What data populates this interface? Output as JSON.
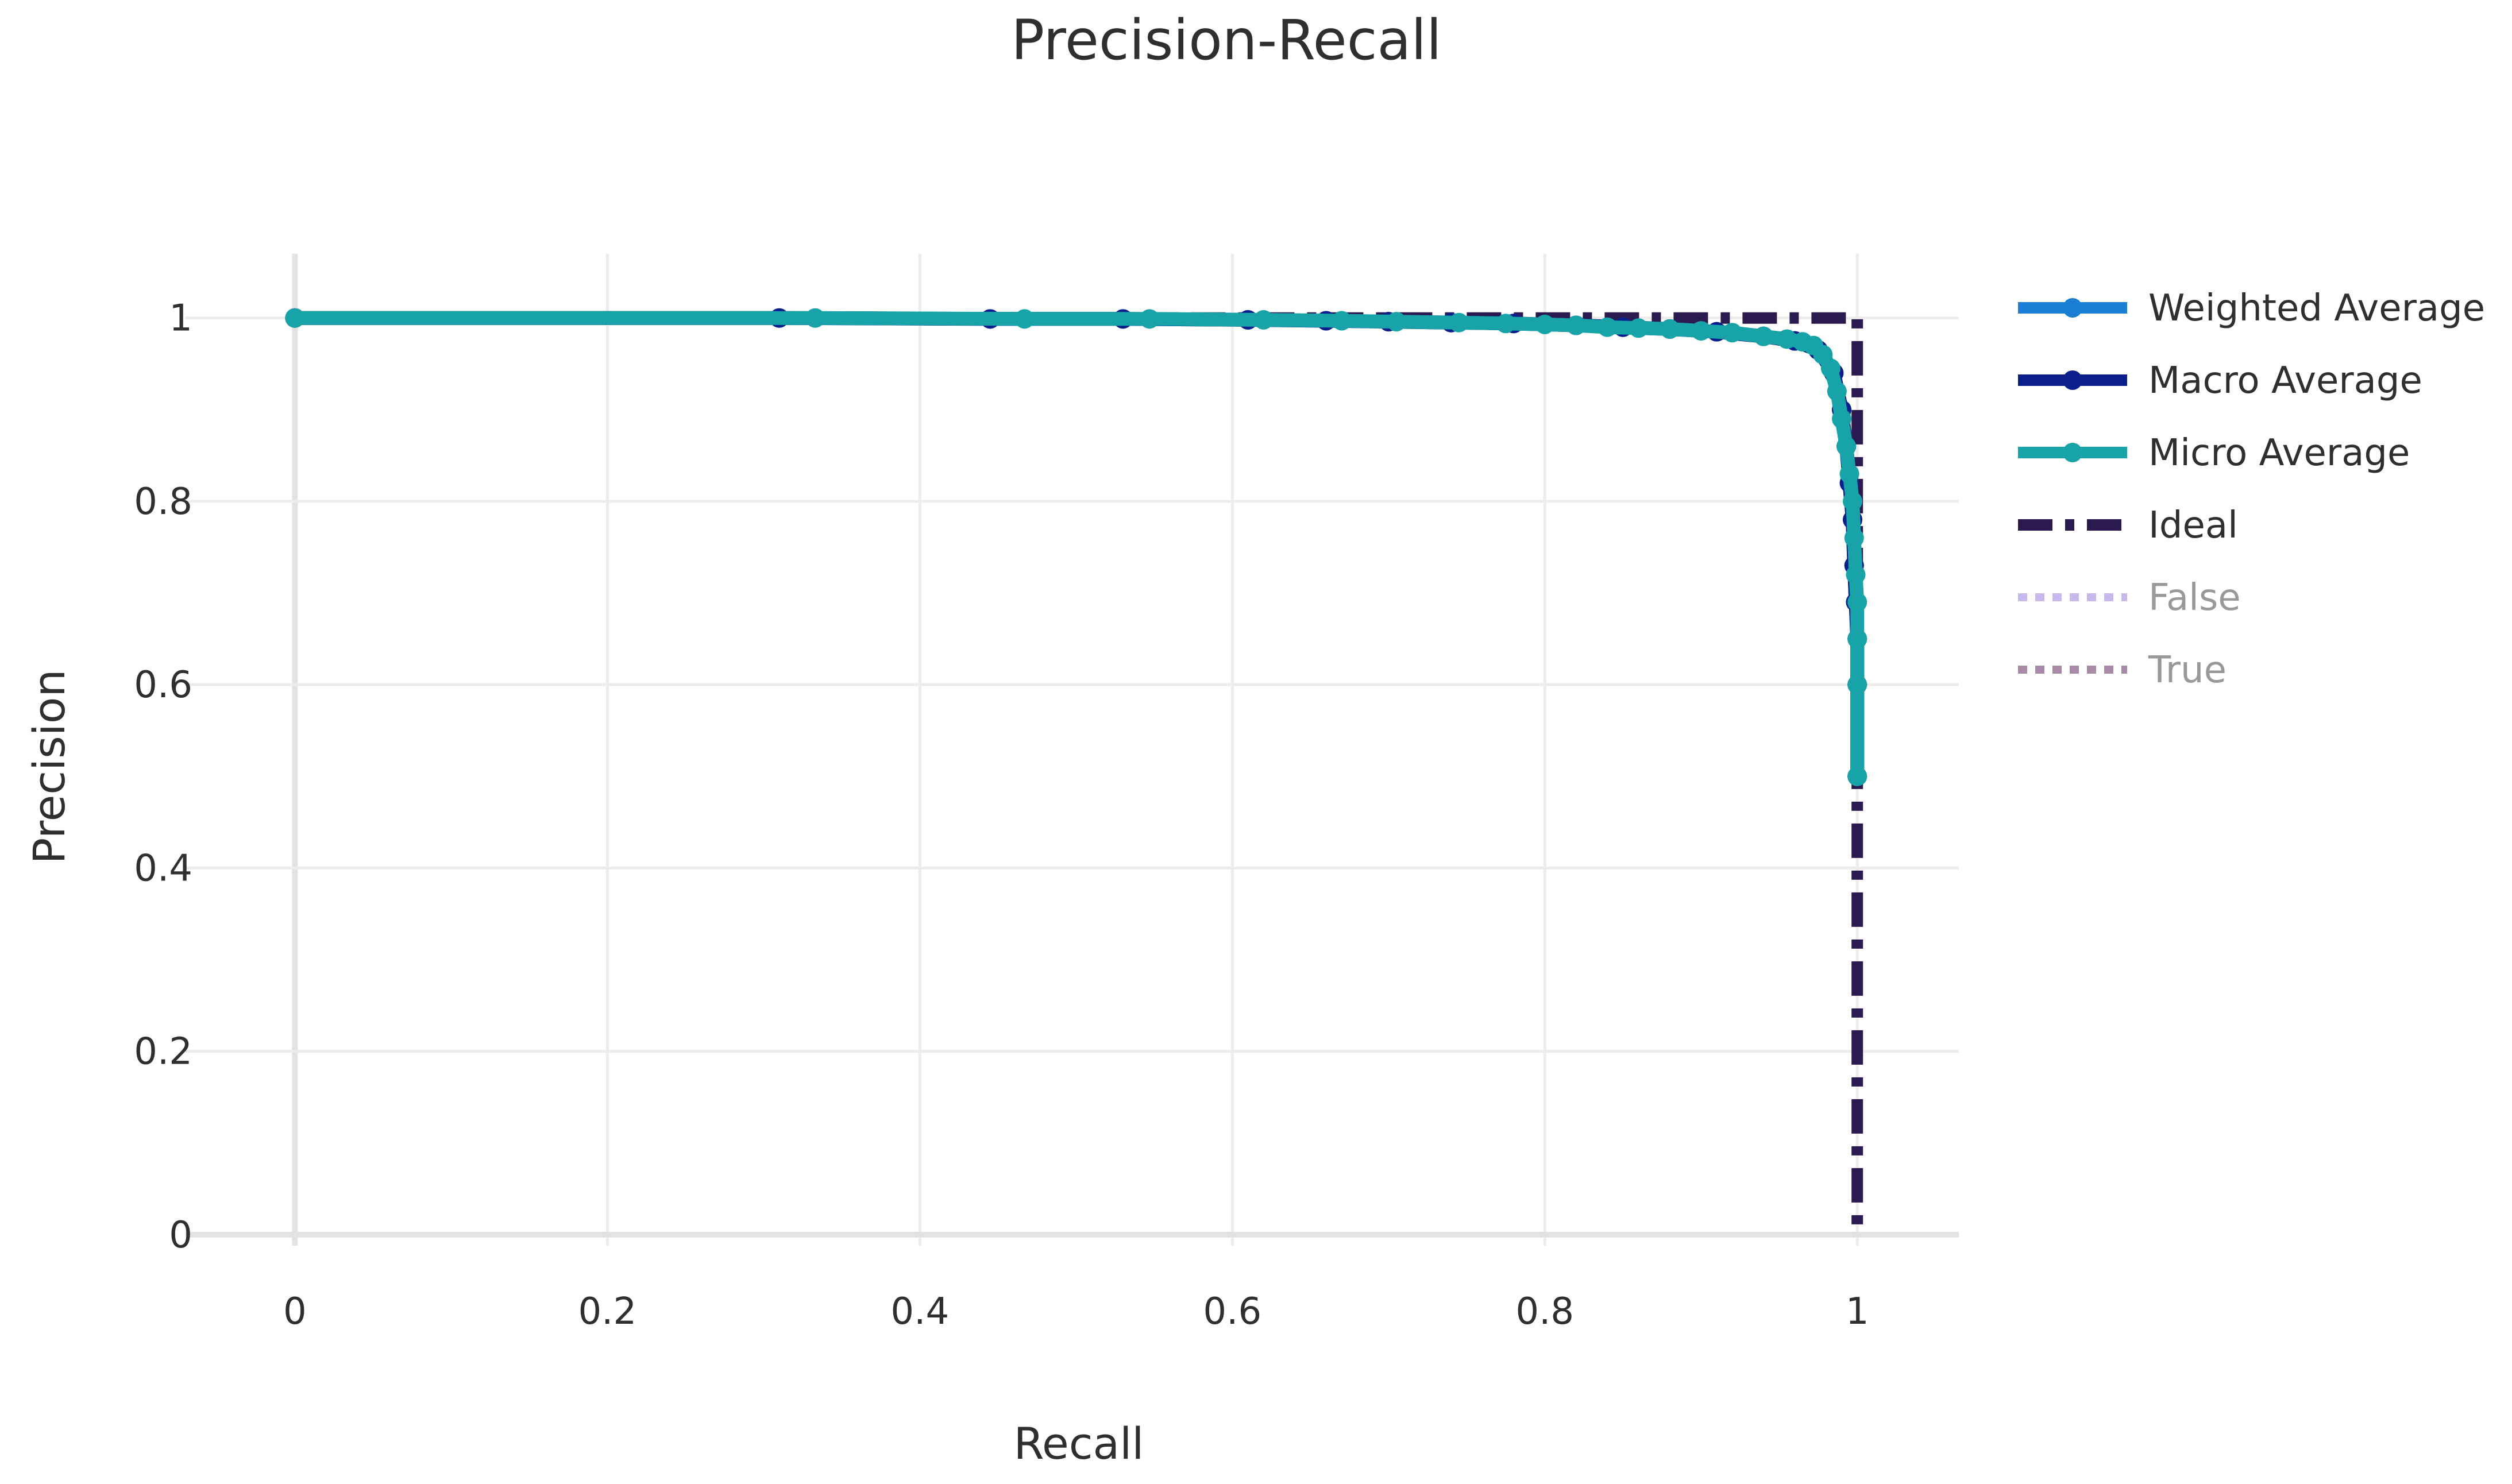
{
  "chart_data": {
    "type": "line",
    "title": "Precision-Recall",
    "xlabel": "Recall",
    "ylabel": "Precision",
    "xlim": [
      -0.07,
      1.065
    ],
    "ylim": [
      -0.012,
      1.07
    ],
    "grid": true,
    "legend_position": "right",
    "xticks": [
      {
        "value": 0,
        "label": "0"
      },
      {
        "value": 0.2,
        "label": "0.2"
      },
      {
        "value": 0.4,
        "label": "0.4"
      },
      {
        "value": 0.6,
        "label": "0.6"
      },
      {
        "value": 0.8,
        "label": "0.8"
      },
      {
        "value": 1,
        "label": "1"
      }
    ],
    "yticks": [
      {
        "value": 0,
        "label": "0"
      },
      {
        "value": 0.2,
        "label": "0.2"
      },
      {
        "value": 0.4,
        "label": "0.4"
      },
      {
        "value": 0.6,
        "label": "0.6"
      },
      {
        "value": 0.8,
        "label": "0.8"
      },
      {
        "value": 1,
        "label": "1"
      }
    ],
    "series": [
      {
        "name": "Weighted Average",
        "color": "#1a7fd4",
        "style": "solid",
        "markers": true,
        "legend_muted": false,
        "x": [
          0,
          0.31,
          0.445,
          0.53,
          0.61,
          0.66,
          0.7,
          0.74,
          0.78,
          0.82,
          0.85,
          0.88,
          0.91,
          0.94,
          0.96,
          0.975,
          0.985,
          0.99,
          0.993,
          0.995,
          0.997,
          0.998,
          0.999,
          1,
          1,
          1
        ],
        "y": [
          1,
          1,
          0.999,
          0.999,
          0.998,
          0.997,
          0.996,
          0.995,
          0.994,
          0.992,
          0.99,
          0.988,
          0.985,
          0.98,
          0.975,
          0.965,
          0.94,
          0.9,
          0.86,
          0.82,
          0.78,
          0.73,
          0.69,
          0.65,
          0.6,
          0.5
        ]
      },
      {
        "name": "Macro Average",
        "color": "#0b1f8c",
        "style": "solid",
        "markers": true,
        "legend_muted": false,
        "x": [
          0,
          0.31,
          0.445,
          0.53,
          0.61,
          0.66,
          0.7,
          0.74,
          0.78,
          0.82,
          0.85,
          0.88,
          0.91,
          0.94,
          0.96,
          0.975,
          0.985,
          0.99,
          0.993,
          0.995,
          0.997,
          0.998,
          0.999,
          1,
          1,
          1
        ],
        "y": [
          1,
          1,
          0.999,
          0.999,
          0.998,
          0.997,
          0.996,
          0.995,
          0.994,
          0.992,
          0.99,
          0.988,
          0.985,
          0.98,
          0.975,
          0.965,
          0.94,
          0.9,
          0.86,
          0.82,
          0.78,
          0.73,
          0.69,
          0.65,
          0.6,
          0.5
        ]
      },
      {
        "name": "Micro Average",
        "color": "#17a3a8",
        "style": "solid",
        "markers": true,
        "legend_muted": false,
        "x": [
          0,
          0.333,
          0.467,
          0.547,
          0.62,
          0.67,
          0.705,
          0.745,
          0.775,
          0.8,
          0.82,
          0.84,
          0.86,
          0.88,
          0.9,
          0.92,
          0.94,
          0.955,
          0.965,
          0.972,
          0.978,
          0.983,
          0.987,
          0.99,
          0.993,
          0.995,
          0.997,
          0.998,
          0.999,
          1,
          1,
          1,
          1
        ],
        "y": [
          1,
          1,
          0.999,
          0.999,
          0.998,
          0.997,
          0.996,
          0.995,
          0.994,
          0.993,
          0.992,
          0.99,
          0.989,
          0.988,
          0.986,
          0.984,
          0.98,
          0.977,
          0.974,
          0.97,
          0.96,
          0.945,
          0.92,
          0.89,
          0.86,
          0.83,
          0.8,
          0.76,
          0.72,
          0.69,
          0.65,
          0.6,
          0.5
        ]
      },
      {
        "name": "Ideal",
        "color": "#2b1a4f",
        "style": "dashdot",
        "markers": false,
        "legend_muted": false,
        "x": [
          0,
          1,
          1
        ],
        "y": [
          1,
          1,
          0
        ]
      },
      {
        "name": "False",
        "color": "#c7b8ee",
        "style": "dot",
        "markers": false,
        "legend_muted": true,
        "x": [],
        "y": []
      },
      {
        "name": "True",
        "color": "#a88aa8",
        "style": "dot",
        "markers": false,
        "legend_muted": true,
        "x": [],
        "y": []
      }
    ]
  }
}
